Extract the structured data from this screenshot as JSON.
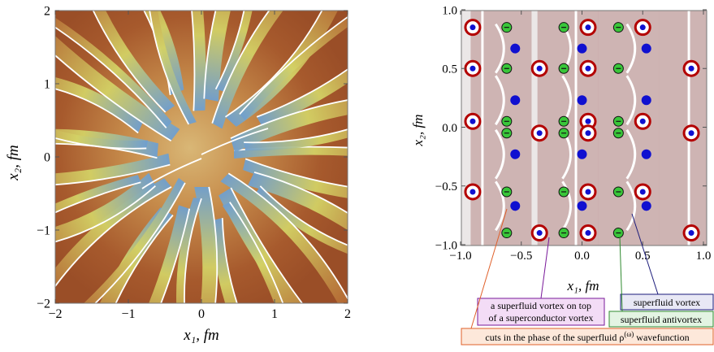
{
  "left_plot": {
    "x_ticks": [
      "−2",
      "−1",
      "0",
      "1",
      "2"
    ],
    "y_ticks": [
      "2",
      "1",
      "0",
      "−1",
      "−2"
    ],
    "x_label": "x₁, fm",
    "y_label": "x₂, fm",
    "colors": {
      "brown": "#a4552a",
      "yellow": "#d2cf63",
      "blue": "#6f9fcf",
      "tan": "#cfa86a",
      "cut": "#ffffff"
    }
  },
  "right_plot": {
    "x_ticks": [
      "−1.0",
      "−0.5",
      "0.0",
      "0.5",
      "1.0"
    ],
    "y_ticks": [
      "1.0",
      "0.5",
      "0.0",
      "−0.5",
      "−1.0"
    ],
    "x_label": "x₁, fm",
    "y_label": "x₂, fm",
    "red_vortices": [
      [
        -0.9,
        0.85
      ],
      [
        0.05,
        0.85
      ],
      [
        0.5,
        0.85
      ],
      [
        -0.35,
        0.5
      ],
      [
        0.05,
        0.5
      ],
      [
        0.9,
        0.5
      ],
      [
        -0.9,
        0.5
      ],
      [
        -0.9,
        0.05
      ],
      [
        0.05,
        0.05
      ],
      [
        0.5,
        0.05
      ],
      [
        -0.35,
        -0.05
      ],
      [
        0.05,
        -0.05
      ],
      [
        0.9,
        -0.05
      ],
      [
        -0.9,
        -0.55
      ],
      [
        0.05,
        -0.55
      ],
      [
        0.5,
        -0.55
      ],
      [
        -0.35,
        -0.9
      ],
      [
        0.05,
        -0.9
      ],
      [
        0.9,
        -0.9
      ]
    ],
    "blue_vortices": [
      [
        -0.55,
        0.67
      ],
      [
        0.0,
        0.67
      ],
      [
        0.53,
        0.67
      ],
      [
        -0.55,
        0.23
      ],
      [
        0.0,
        0.23
      ],
      [
        0.53,
        0.23
      ],
      [
        -0.55,
        -0.23
      ],
      [
        0.0,
        -0.23
      ],
      [
        0.53,
        -0.23
      ],
      [
        -0.55,
        -0.67
      ],
      [
        0.0,
        -0.67
      ],
      [
        0.53,
        -0.67
      ]
    ],
    "green_antivortices": [
      [
        -0.62,
        0.85
      ],
      [
        -0.15,
        0.85
      ],
      [
        0.3,
        0.85
      ],
      [
        -0.62,
        0.5
      ],
      [
        -0.15,
        0.5
      ],
      [
        0.3,
        0.5
      ],
      [
        -0.62,
        0.05
      ],
      [
        -0.15,
        0.05
      ],
      [
        0.3,
        0.05
      ],
      [
        -0.62,
        -0.05
      ],
      [
        -0.15,
        -0.05
      ],
      [
        0.3,
        -0.05
      ],
      [
        -0.62,
        -0.55
      ],
      [
        -0.15,
        -0.55
      ],
      [
        0.3,
        -0.55
      ],
      [
        -0.62,
        -0.9
      ],
      [
        -0.15,
        -0.9
      ],
      [
        0.3,
        -0.9
      ]
    ],
    "colors": {
      "red": "#b30000",
      "blue": "#1010d0",
      "green": "#39c639",
      "bg_dark": "#c4a3a1",
      "bg_light": "#ebe7e7"
    }
  },
  "annotations": {
    "sf_vortex": "superfluid vortex",
    "sf_antivortex": "superfluid antivortex",
    "combo_line1": "a superfluid vortex on top",
    "combo_line2": "of a superconductor vortex",
    "cuts": "cuts in the phase of the superfluid ρ",
    "cuts_sup": "(ω)",
    "cuts_tail": " wavefunction"
  }
}
